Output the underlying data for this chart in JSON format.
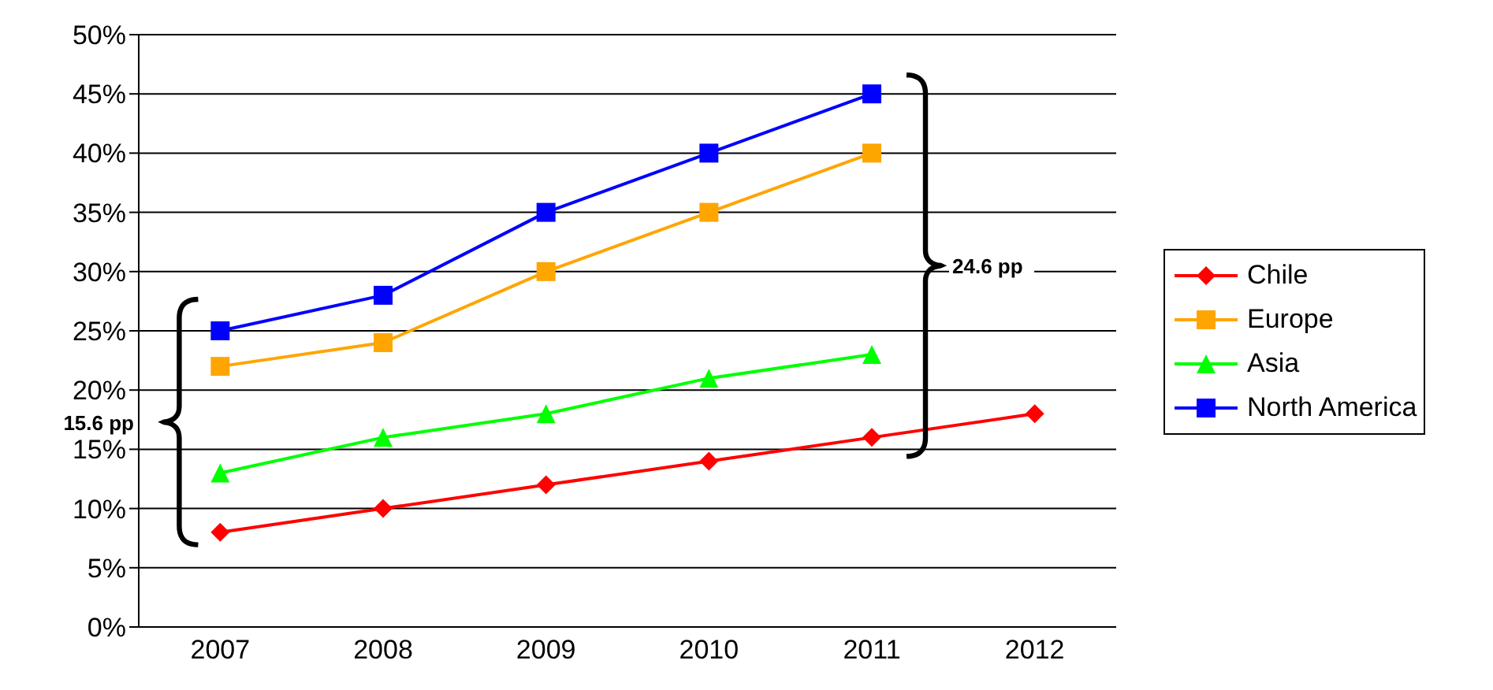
{
  "chart_data": {
    "type": "line",
    "categories": [
      "2007",
      "2008",
      "2009",
      "2010",
      "2011",
      "2012"
    ],
    "series": [
      {
        "name": "Chile",
        "color": "#ff0000",
        "marker": "diamond",
        "values": [
          8,
          10,
          12,
          14,
          16,
          18
        ]
      },
      {
        "name": "Europe",
        "color": "#ffa500",
        "marker": "square",
        "values": [
          22,
          24,
          30,
          35,
          40,
          null
        ]
      },
      {
        "name": "Asia",
        "color": "#00ff00",
        "marker": "triangle",
        "values": [
          13,
          16,
          18,
          21,
          23,
          null
        ]
      },
      {
        "name": "North America",
        "color": "#0000ff",
        "marker": "square",
        "values": [
          25,
          28,
          35,
          40,
          45,
          null
        ]
      }
    ],
    "ylim": [
      0,
      50
    ],
    "yticks": [
      {
        "value": 0,
        "label": "0%"
      },
      {
        "value": 5,
        "label": "5%"
      },
      {
        "value": 10,
        "label": "10%"
      },
      {
        "value": 15,
        "label": "15%"
      },
      {
        "value": 20,
        "label": "20%"
      },
      {
        "value": 25,
        "label": "25%"
      },
      {
        "value": 30,
        "label": "30%"
      },
      {
        "value": 35,
        "label": "35%"
      },
      {
        "value": 40,
        "label": "40%"
      },
      {
        "value": 45,
        "label": "45%"
      },
      {
        "value": 50,
        "label": "50%"
      }
    ],
    "grid": "y",
    "legend": "right",
    "annotations": [
      "15.6 pp",
      "24.6 pp"
    ]
  }
}
